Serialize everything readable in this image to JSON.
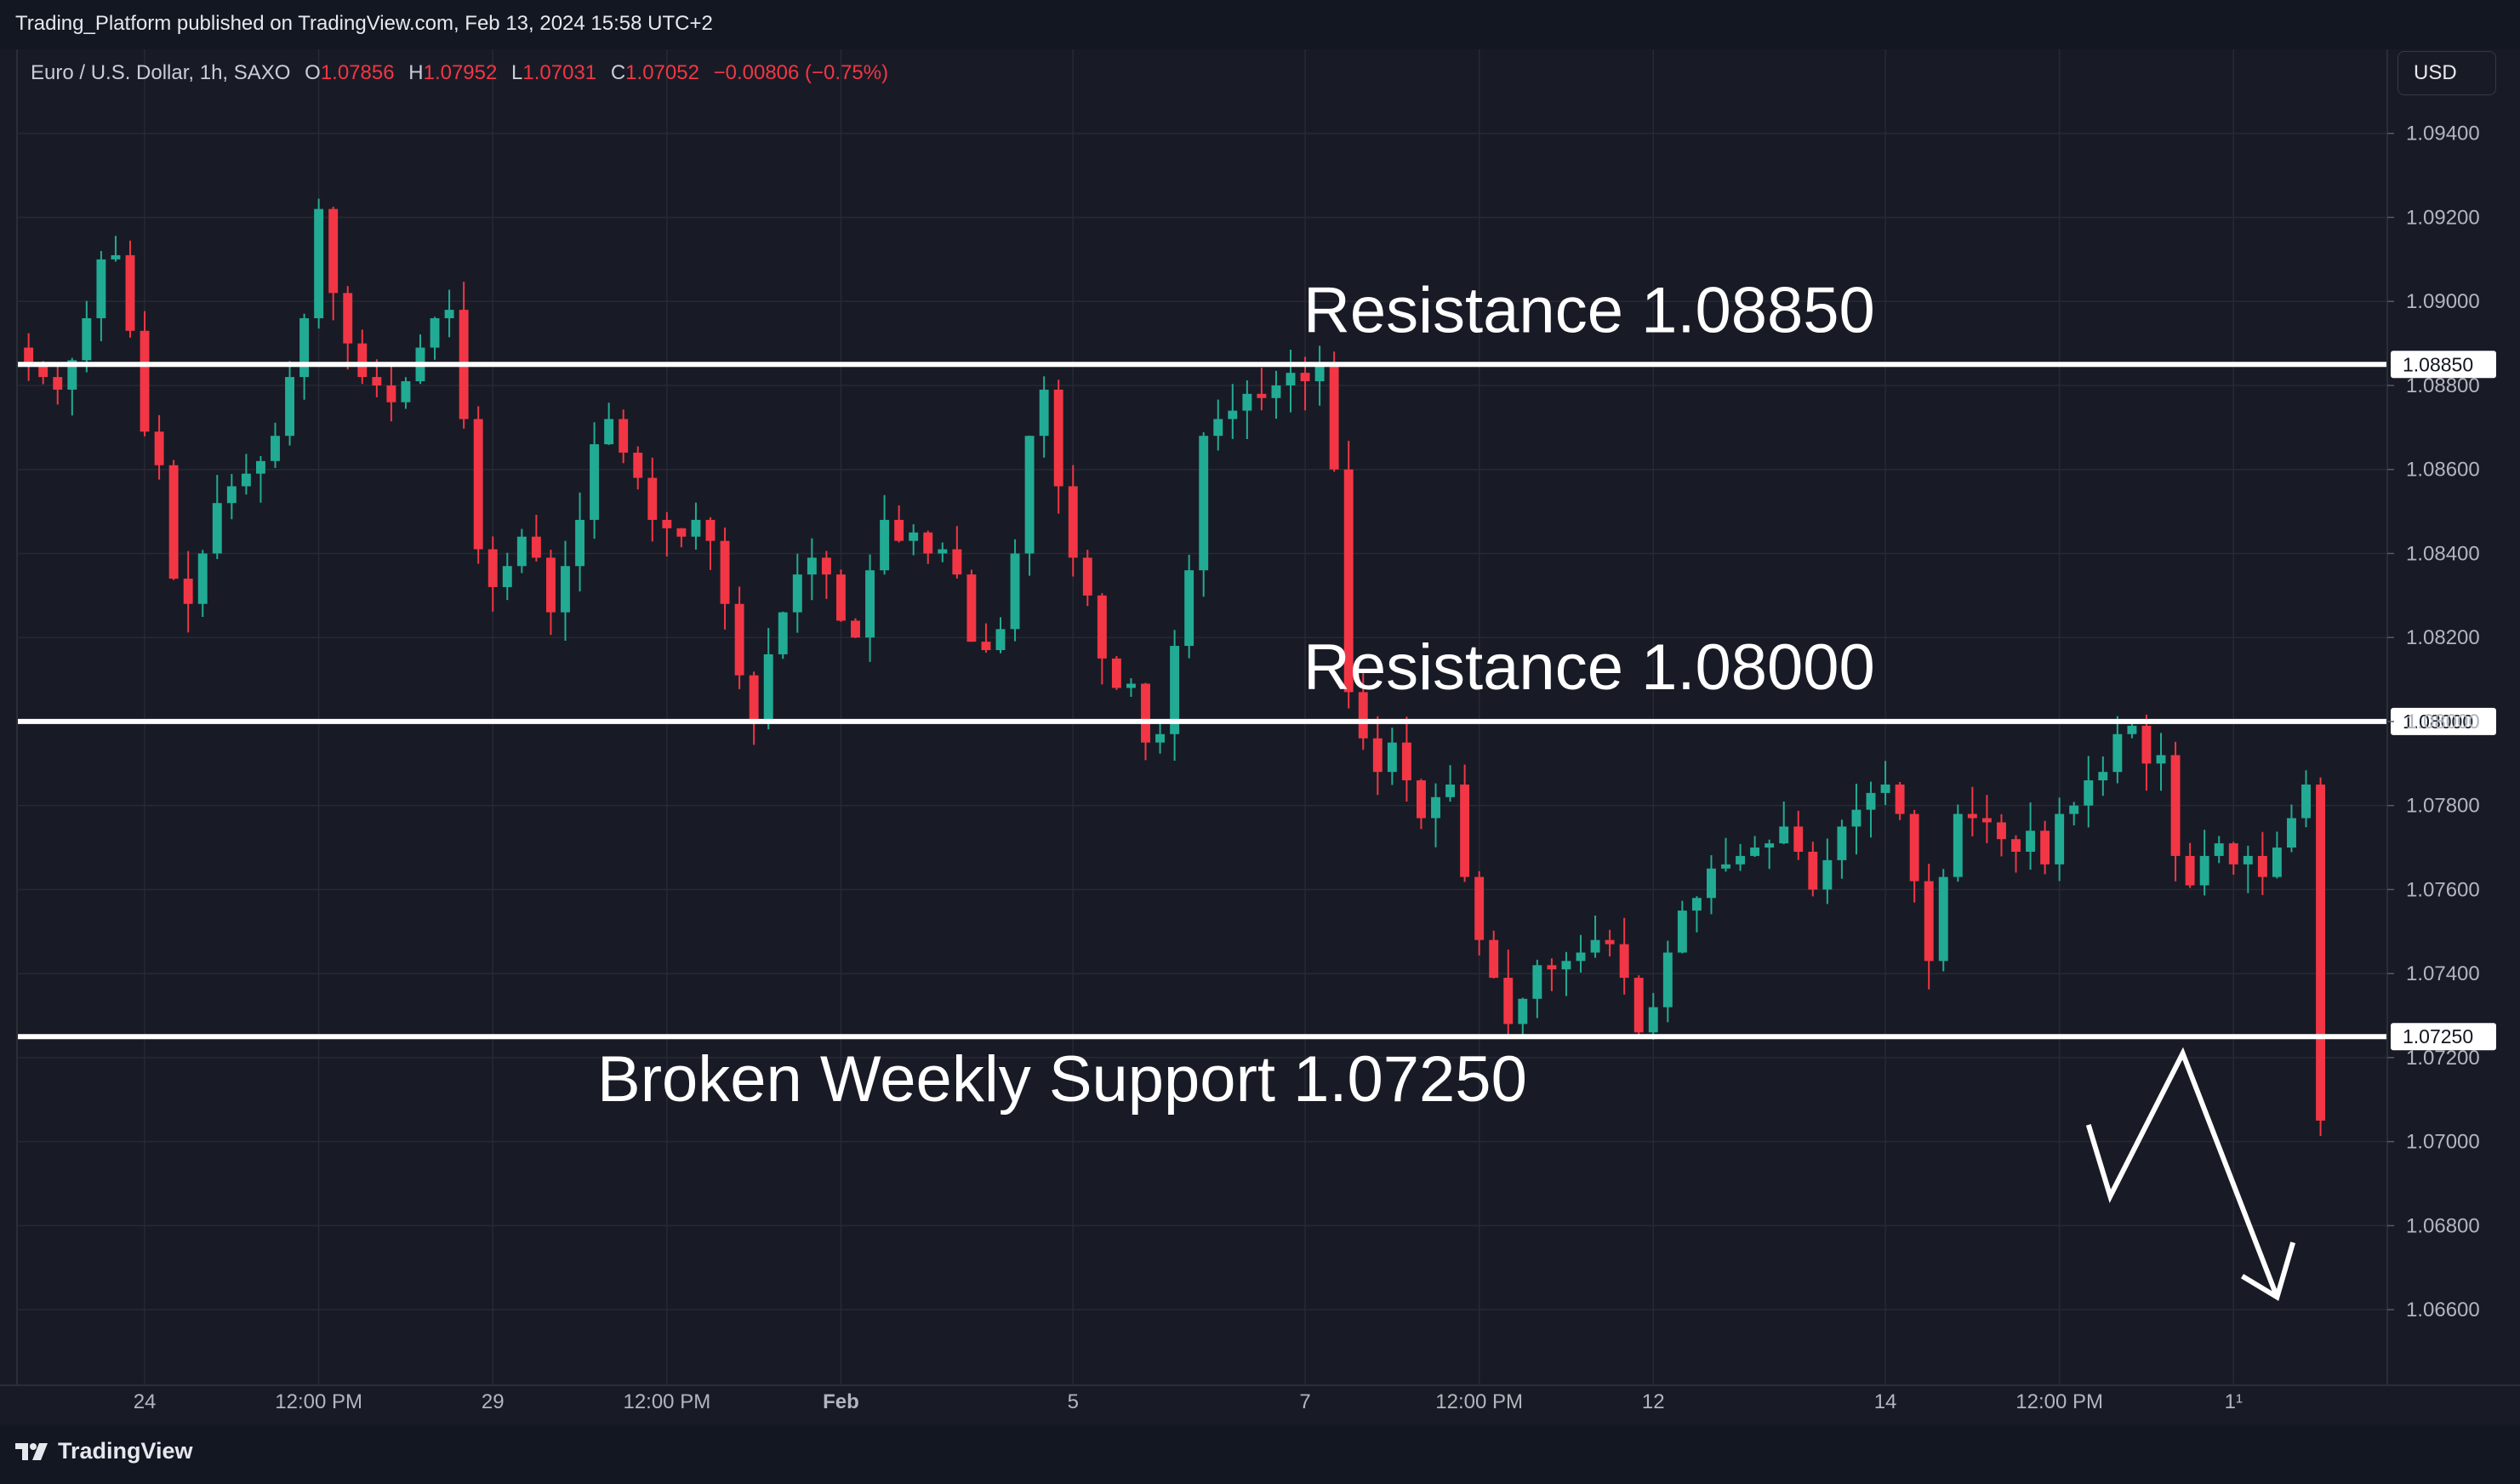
{
  "header": {
    "published": "Trading_Platform published on TradingView.com, Feb 13, 2024 15:58 UTC+2"
  },
  "symbol": {
    "name": "Euro / U.S. Dollar, 1h, SAXO",
    "open_label": "O",
    "open": "1.07856",
    "high_label": "H",
    "high": "1.07952",
    "low_label": "L",
    "low": "1.07031",
    "close_label": "C",
    "close": "1.07052",
    "change": "−0.00806 (−0.75%)"
  },
  "currency_button": "USD",
  "footer": {
    "brand": "TradingView"
  },
  "colors": {
    "background": "#181b25",
    "grid": "#262a35",
    "up": "#22ab94",
    "down": "#f23645",
    "annotation": "#ffffff"
  },
  "chart_data": {
    "type": "candlestick",
    "ylim": [
      1.0642,
      1.096
    ],
    "y_ticks": [
      "1.06600",
      "1.06800",
      "1.07000",
      "1.07200",
      "1.07400",
      "1.07600",
      "1.07800",
      "1.08000",
      "1.08200",
      "1.08400",
      "1.08600",
      "1.08800",
      "1.09000",
      "1.09200",
      "1.09400"
    ],
    "x_ticks": [
      {
        "label": "24",
        "bar": 24,
        "bold": false
      },
      {
        "label": "12:00 PM",
        "bar": 36,
        "bold": false
      },
      {
        "label": "29",
        "bar": 48,
        "bold": false
      },
      {
        "label": "12:00 PM",
        "bar": 60,
        "bold": false
      },
      {
        "label": "Feb",
        "bar": 72,
        "bold": true
      },
      {
        "label": "5",
        "bar": 88,
        "bold": false
      },
      {
        "label": "7",
        "bar": 104,
        "bold": false
      },
      {
        "label": "12:00 PM",
        "bar": 116,
        "bold": false
      },
      {
        "label": "12",
        "bar": 128,
        "bold": false
      },
      {
        "label": "14",
        "bar": 144,
        "bold": false
      },
      {
        "label": "12:00 PM",
        "bar": 156,
        "bold": false
      },
      {
        "label": "1¹",
        "bar": 168,
        "bold": false
      }
    ],
    "x_domain": [
      15.2,
      178.6
    ],
    "closes": [
      1.0885,
      1.0882,
      1.0879,
      1.0886,
      1.0896,
      1.091,
      1.0911,
      1.0893,
      1.0869,
      1.0861,
      1.0834,
      1.0828,
      1.084,
      1.0852,
      1.0856,
      1.0859,
      1.0862,
      1.0868,
      1.0882,
      1.0896,
      1.0922,
      1.0902,
      1.089,
      1.0882,
      1.088,
      1.0876,
      1.0881,
      1.0889,
      1.0896,
      1.0898,
      1.0872,
      1.0841,
      1.0832,
      1.0837,
      1.0844,
      1.0839,
      1.0826,
      1.0837,
      1.0848,
      1.0866,
      1.0872,
      1.0864,
      1.0858,
      1.0848,
      1.0846,
      1.0844,
      1.0848,
      1.0843,
      1.0828,
      1.0811,
      1.08,
      1.0816,
      1.0826,
      1.0835,
      1.0839,
      1.0835,
      1.0824,
      1.082,
      1.0836,
      1.0848,
      1.0843,
      1.0845,
      1.084,
      1.0841,
      1.0835,
      1.0819,
      1.0817,
      1.0822,
      1.084,
      1.0868,
      1.0879,
      1.0856,
      1.0839,
      1.083,
      1.0815,
      1.0808,
      1.0809,
      1.0795,
      1.0797,
      1.0818,
      1.0836,
      1.0868,
      1.0872,
      1.0874,
      1.0878,
      1.0877,
      1.088,
      1.0883,
      1.0881,
      1.0885,
      1.086,
      1.0807,
      1.0796,
      1.0788,
      1.0795,
      1.0786,
      1.0777,
      1.0782,
      1.0785,
      1.0763,
      1.0748,
      1.0739,
      1.0728,
      1.0734,
      1.0742,
      1.0741,
      1.0743,
      1.0745,
      1.0748,
      1.0747,
      1.0739,
      1.0726,
      1.0732,
      1.0745,
      1.0755,
      1.0758,
      1.0765,
      1.0766,
      1.0768,
      1.077,
      1.0771,
      1.0775,
      1.0769,
      1.076,
      1.0767,
      1.0775,
      1.0779,
      1.0783,
      1.0785,
      1.0778,
      1.0762,
      1.0743,
      1.0763,
      1.0778,
      1.0777,
      1.0776,
      1.0772,
      1.0769,
      1.0774,
      1.0766,
      1.0778,
      1.078,
      1.0786,
      1.0788,
      1.0797,
      1.0799,
      1.079,
      1.0792,
      1.0768,
      1.0761,
      1.0768,
      1.0771,
      1.0766,
      1.0768,
      1.0763,
      1.077,
      1.0777,
      1.0785,
      1.0705
    ],
    "support_resistance": [
      {
        "level": 1.0885,
        "price_label": "1.08850",
        "text": "Resistance 1.08850"
      },
      {
        "level": 1.08,
        "price_label": "1.08000",
        "text": "Resistance 1.08000"
      },
      {
        "level": 1.0725,
        "price_label": "1.07250",
        "text": "Broken Weekly Support 1.07250"
      }
    ],
    "projection_path": [
      [
        158.0,
        1.0704
      ],
      [
        159.5,
        1.0687
      ],
      [
        164.5,
        1.0721
      ],
      [
        171.0,
        1.0663
      ]
    ],
    "projection_arrowhead": [
      [
        168.6,
        1.0668
      ],
      [
        171.0,
        1.0663
      ],
      [
        172.1,
        1.0676
      ]
    ]
  }
}
